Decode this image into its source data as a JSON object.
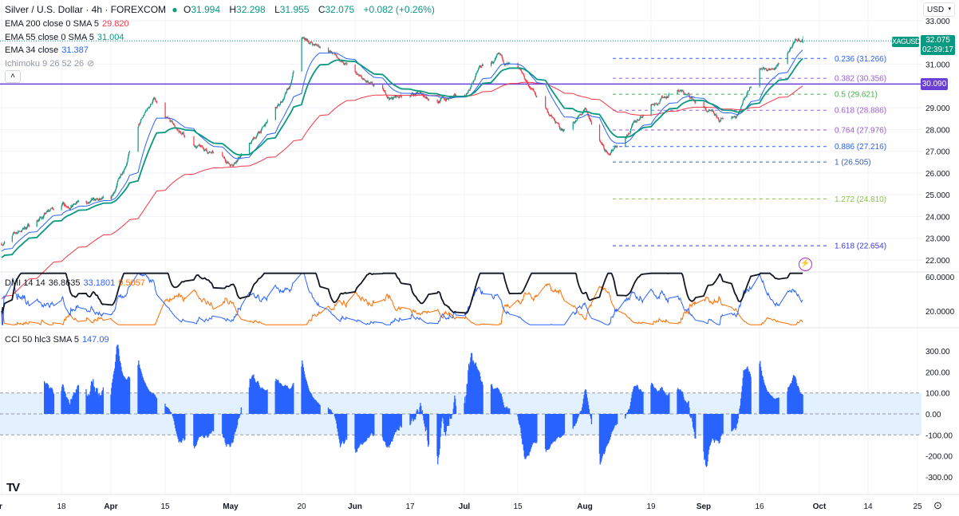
{
  "header": {
    "symbol_title": "Silver / U.S. Dollar · 4h · FOREXCOM",
    "ohlc": {
      "o_label": "O",
      "o": "31.994",
      "h_label": "H",
      "h": "32.298",
      "l_label": "L",
      "l": "31.955",
      "c_label": "C",
      "c": "32.075",
      "change": "+0.082 (+0.26%)"
    },
    "currency": "USD"
  },
  "indicators": {
    "ema200": {
      "label": "EMA 200 close 0 SMA 5",
      "value": "29.820",
      "color": "#f23645"
    },
    "ema55": {
      "label": "EMA 55 close 0 SMA 5",
      "value": "31.004",
      "color": "#089981"
    },
    "ema34": {
      "label": "EMA 34 close",
      "value": "31.387",
      "color": "#2962ff"
    },
    "ichimoku": {
      "label": "Ichimoku 9 26 52 26",
      "icon": "eye-crossed-icon"
    },
    "dmi": {
      "label": "DMI 14 14",
      "adx": "36.8635",
      "plus_di": "33.1801",
      "minus_di": "9.5057",
      "colors": {
        "adx": "#131722",
        "plus": "#2962ff",
        "minus": "#ff6d00"
      }
    },
    "cci": {
      "label": "CCI 50 hlc3 SMA 5",
      "value": "147.09",
      "color": "#2962ff"
    }
  },
  "price_tags": {
    "symbol": "XAGUSD",
    "last": "32.075",
    "countdown": "02:39:17",
    "hline": "30.090"
  },
  "colors": {
    "up": "#089981",
    "down": "#f23645",
    "hline": "#6a3fd6",
    "cci_band": "#e3f0fd"
  },
  "chart_data": {
    "type": "candlestick",
    "timeframe": "4h",
    "price_axis": {
      "ticks": [
        "33.000",
        "31.000",
        "29.000",
        "28.000",
        "27.000",
        "26.000",
        "25.000",
        "24.000",
        "23.000",
        "22.000"
      ],
      "range": [
        21.8,
        33.3
      ]
    },
    "time_axis": {
      "ticks": [
        "Mar",
        "18",
        "Apr",
        "15",
        "May",
        "20",
        "Jun",
        "17",
        "Jul",
        "15",
        "Aug",
        "19",
        "Sep",
        "16",
        "Oct",
        "14",
        "25"
      ]
    },
    "close_approx": [
      [
        "2024-03-01",
        22.77
      ],
      [
        "2024-03-18",
        24.6
      ],
      [
        "2024-04-01",
        24.6
      ],
      [
        "2024-04-08",
        28.1
      ],
      [
        "2024-04-12",
        29.4
      ],
      [
        "2024-04-15",
        28.4
      ],
      [
        "2024-04-22",
        27.3
      ],
      [
        "2024-05-01",
        26.4
      ],
      [
        "2024-05-10",
        28.1
      ],
      [
        "2024-05-17",
        29.9
      ],
      [
        "2024-05-20",
        32.1
      ],
      [
        "2024-05-27",
        31.7
      ],
      [
        "2024-06-03",
        30.5
      ],
      [
        "2024-06-07",
        29.9
      ],
      [
        "2024-06-12",
        29.4
      ],
      [
        "2024-06-17",
        29.7
      ],
      [
        "2024-06-24",
        29.4
      ],
      [
        "2024-07-01",
        29.4
      ],
      [
        "2024-07-05",
        30.8
      ],
      [
        "2024-07-10",
        31.2
      ],
      [
        "2024-07-15",
        30.6
      ],
      [
        "2024-07-22",
        29.0
      ],
      [
        "2024-07-26",
        27.9
      ],
      [
        "2024-08-01",
        28.8
      ],
      [
        "2024-08-07",
        26.8
      ],
      [
        "2024-08-12",
        27.7
      ],
      [
        "2024-08-19",
        29.2
      ],
      [
        "2024-08-26",
        29.9
      ],
      [
        "2024-09-02",
        29.0
      ],
      [
        "2024-09-06",
        28.3
      ],
      [
        "2024-09-10",
        28.6
      ],
      [
        "2024-09-16",
        31.0
      ],
      [
        "2024-09-20",
        30.8
      ],
      [
        "2024-09-24",
        31.8
      ],
      [
        "2024-09-26",
        32.075
      ]
    ],
    "horizontal_line": 30.09,
    "fibonacci": [
      {
        "level": "0.236",
        "price": 31.266,
        "label": "0.236 (31.266)",
        "color": "#2962ff"
      },
      {
        "level": "0.382",
        "price": 30.356,
        "label": "0.382 (30.356)",
        "color": "#9c5ed4"
      },
      {
        "level": "0.5",
        "price": 29.621,
        "label": "0.5 (29.621)",
        "color": "#4caf50"
      },
      {
        "level": "0.618",
        "price": 28.886,
        "label": "0.618 (28.886)",
        "color": "#9c5ed4"
      },
      {
        "level": "0.764",
        "price": 27.976,
        "label": "0.764 (27.976)",
        "color": "#9c5ed4"
      },
      {
        "level": "0.886",
        "price": 27.216,
        "label": "0.886 (27.216)",
        "color": "#2962ff"
      },
      {
        "level": "1",
        "price": 26.505,
        "label": "1 (26.505)",
        "color": "#3f62a8"
      },
      {
        "level": "1.272",
        "price": 24.81,
        "label": "1.272 (24.810)",
        "color": "#8bc34a"
      },
      {
        "level": "1.618",
        "price": 22.654,
        "label": "1.618 (22.654)",
        "color": "#3a3ae0"
      }
    ],
    "dmi_axis": {
      "ticks": [
        "60.0000",
        "20.0000"
      ]
    },
    "cci_axis": {
      "ticks": [
        "300.00",
        "200.00",
        "100.00",
        "0.00",
        "-100.00",
        "-200.00",
        "-300.00"
      ],
      "band": [
        -100,
        100
      ]
    }
  }
}
